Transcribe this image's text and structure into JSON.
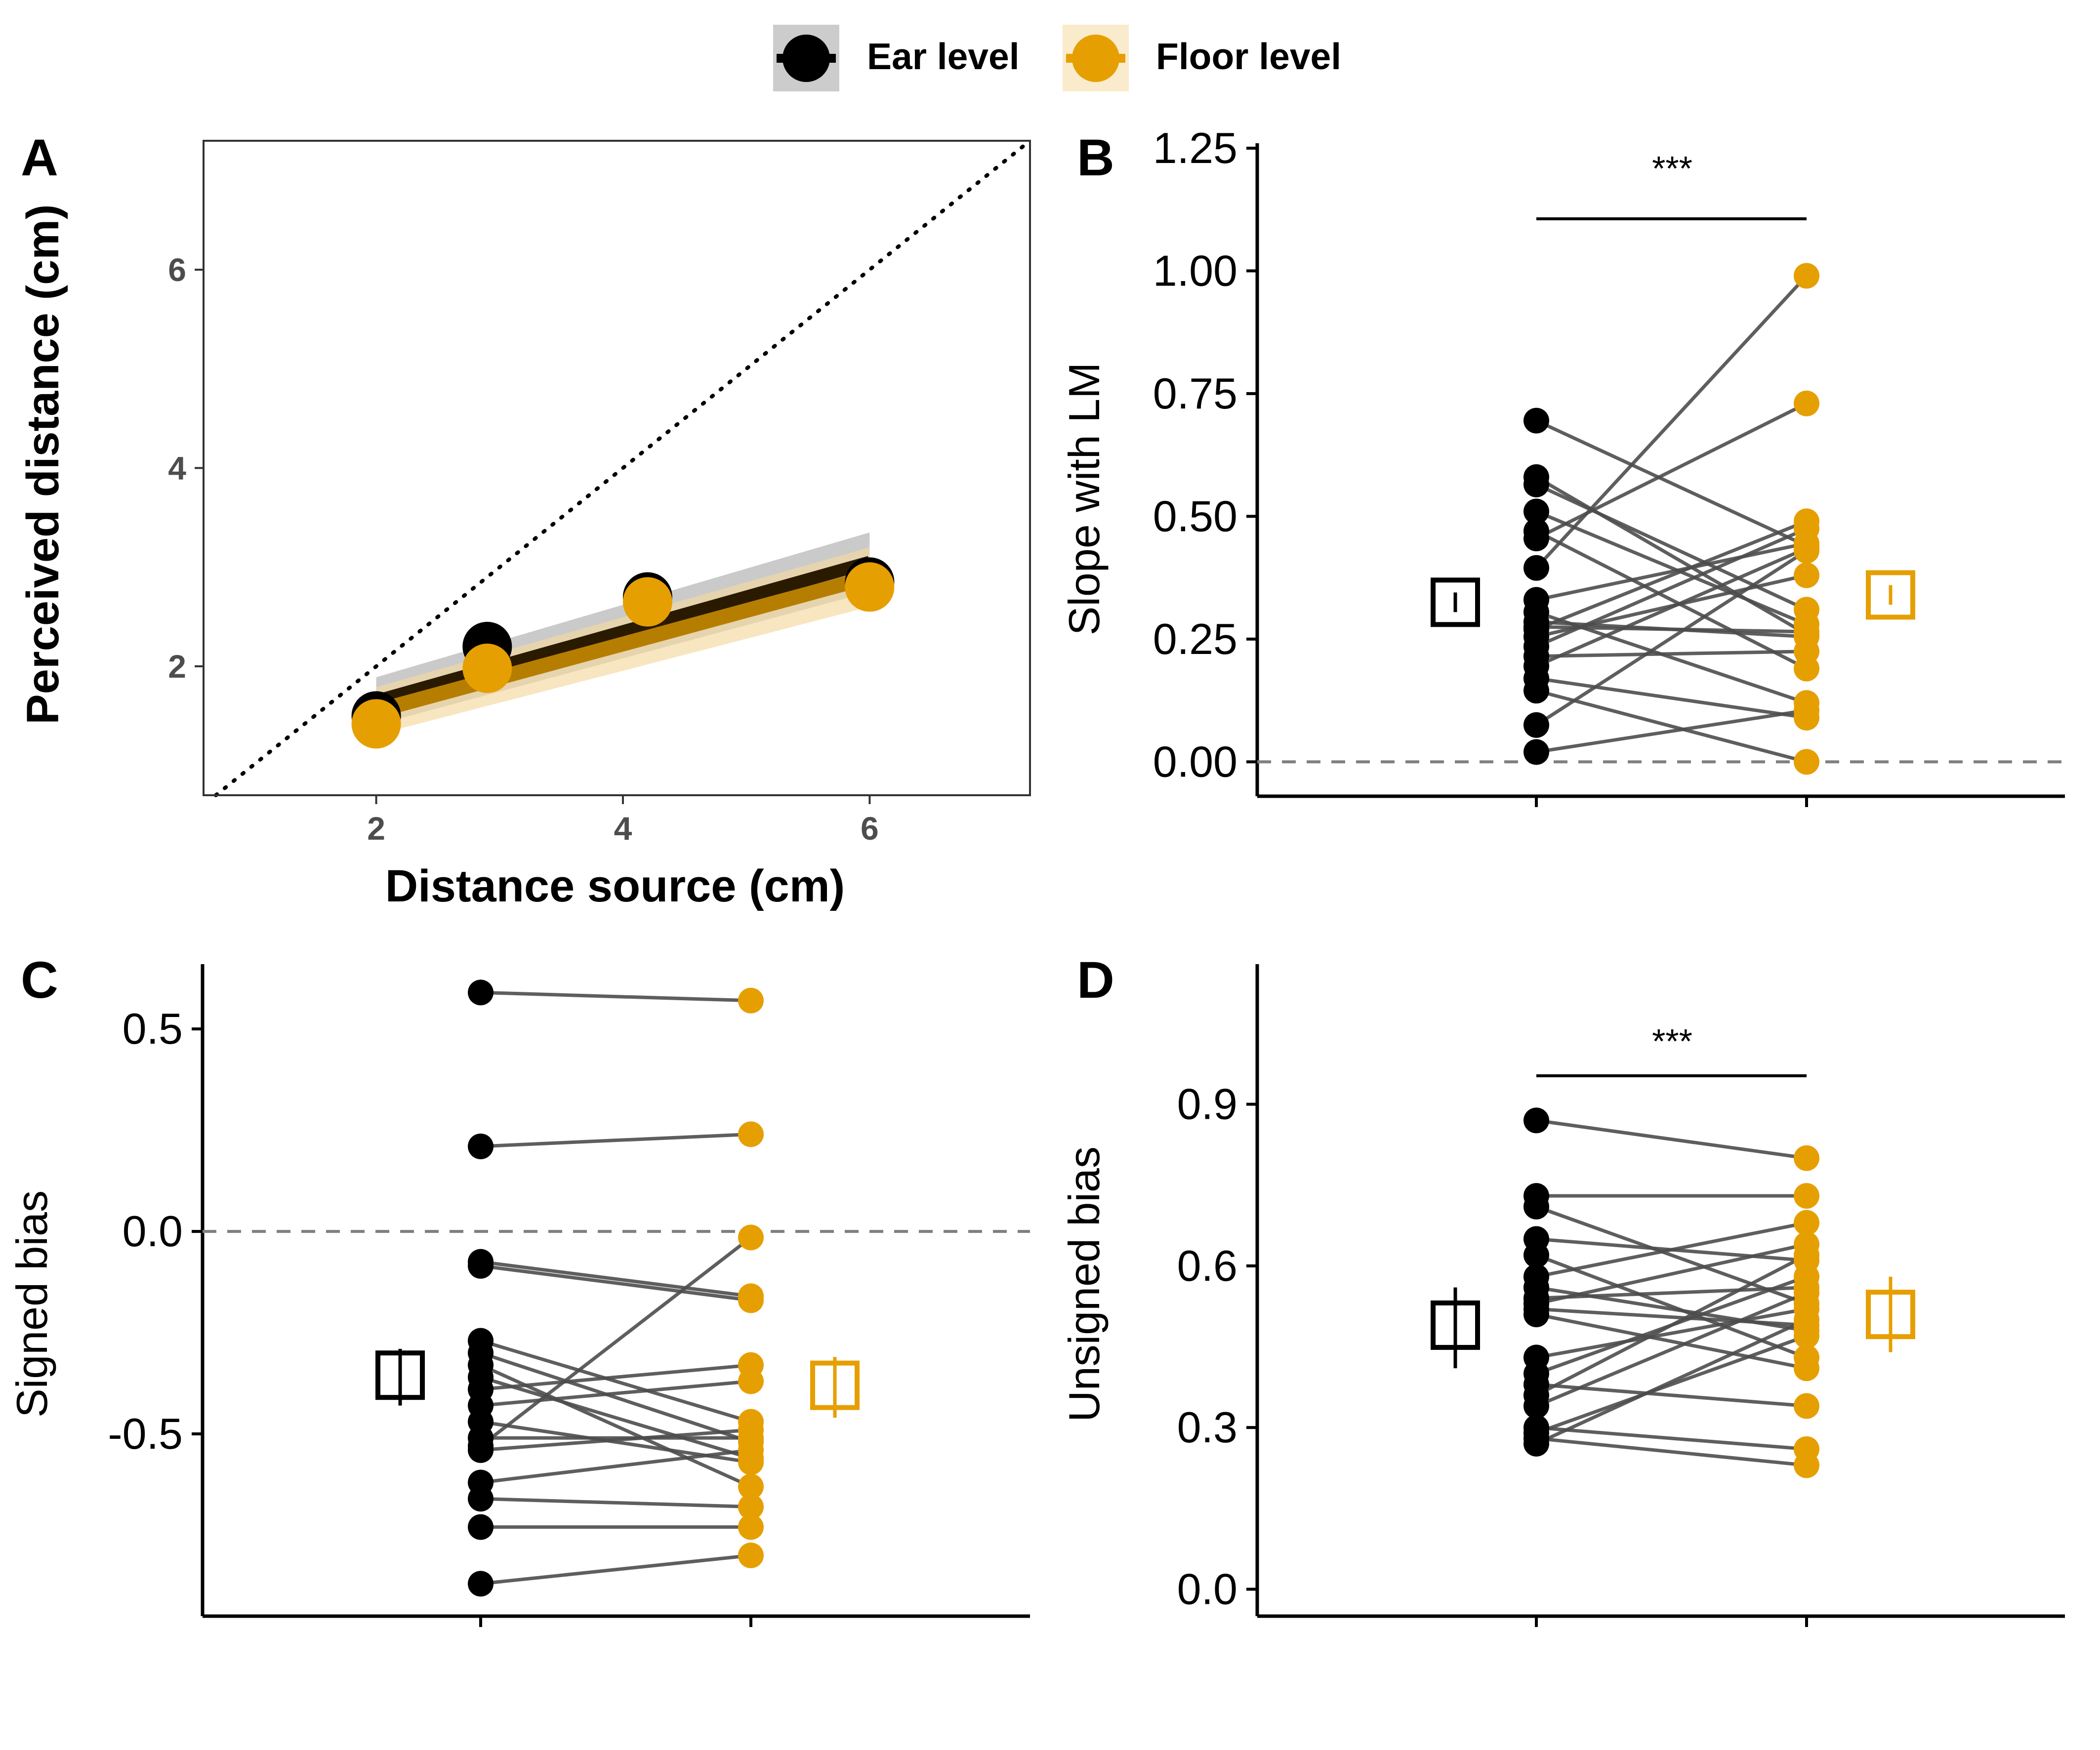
{
  "legend": {
    "items": [
      {
        "label": "Ear level",
        "color": "#000000",
        "bg": "#cccccc"
      },
      {
        "label": "Floor level",
        "color": "#E69F00",
        "bg": "#faebcc"
      }
    ]
  },
  "chart_data": [
    {
      "panel": "A",
      "type": "scatter",
      "xlabel": "Distance source (cm)",
      "ylabel": "Perceived distance (cm)",
      "xlim": [
        0.6,
        7.3
      ],
      "ylim": [
        0.7,
        7.3
      ],
      "xticks": [
        2,
        4,
        6
      ],
      "yticks": [
        2,
        4,
        6
      ],
      "identity_line": true,
      "series": [
        {
          "name": "Ear level",
          "color": "#000000",
          "x": [
            2.0,
            2.9,
            4.2,
            6.0
          ],
          "y": [
            1.5,
            2.2,
            2.7,
            2.85
          ],
          "fit": {
            "x0": 2.0,
            "y0": 1.65,
            "x1": 6.0,
            "y1": 3.05,
            "band": 0.3
          }
        },
        {
          "name": "Floor level",
          "color": "#E69F00",
          "x": [
            2.0,
            2.9,
            4.2,
            6.0
          ],
          "y": [
            1.42,
            1.98,
            2.65,
            2.8
          ],
          "fit": {
            "x0": 2.0,
            "y0": 1.55,
            "x1": 6.0,
            "y1": 2.9,
            "band": 0.3
          }
        }
      ]
    },
    {
      "panel": "B",
      "type": "scatter",
      "ylabel": "Slope with LM",
      "ylim": [
        -0.07,
        1.26
      ],
      "yticks": [
        0.0,
        0.25,
        0.5,
        0.75,
        1.0,
        1.25
      ],
      "ytick_labels": [
        "0.00",
        "0.25",
        "0.50",
        "0.75",
        "1.00",
        "1.25"
      ],
      "reference_line": 0,
      "significance": "***",
      "pairs": [
        [
          0.695,
          0.44
        ],
        [
          0.58,
          0.26
        ],
        [
          0.565,
          0.31
        ],
        [
          0.51,
          0.28
        ],
        [
          0.47,
          0.19
        ],
        [
          0.455,
          0.73
        ],
        [
          0.395,
          0.99
        ],
        [
          0.33,
          0.445
        ],
        [
          0.305,
          0.12
        ],
        [
          0.285,
          0.255
        ],
        [
          0.275,
          0.265
        ],
        [
          0.27,
          0.49
        ],
        [
          0.255,
          0.38
        ],
        [
          0.235,
          0.475
        ],
        [
          0.215,
          0.225
        ],
        [
          0.195,
          0.435
        ],
        [
          0.17,
          0.09
        ],
        [
          0.145,
          0.0
        ],
        [
          0.075,
          0.43
        ],
        [
          0.02,
          0.105
        ]
      ],
      "summary": [
        {
          "group": "Ear level",
          "mean": 0.325,
          "lo": 0.305,
          "hi": 0.345
        },
        {
          "group": "Floor level",
          "mean": 0.34,
          "lo": 0.32,
          "hi": 0.36
        }
      ]
    },
    {
      "panel": "C",
      "type": "scatter",
      "ylabel": "Signed bias",
      "ylim": [
        -0.95,
        0.66
      ],
      "yticks": [
        -0.5,
        0.0,
        0.5
      ],
      "ytick_labels": [
        "-0.5",
        "0.0",
        "0.5"
      ],
      "reference_line": 0,
      "pairs": [
        [
          0.59,
          0.57
        ],
        [
          0.21,
          0.24
        ],
        [
          -0.075,
          -0.16
        ],
        [
          -0.085,
          -0.17
        ],
        [
          -0.27,
          -0.47
        ],
        [
          -0.3,
          -0.52
        ],
        [
          -0.33,
          -0.63
        ],
        [
          -0.36,
          -0.56
        ],
        [
          -0.39,
          -0.33
        ],
        [
          -0.43,
          -0.37
        ],
        [
          -0.47,
          -0.57
        ],
        [
          -0.51,
          -0.51
        ],
        [
          -0.53,
          -0.015
        ],
        [
          -0.54,
          -0.49
        ],
        [
          -0.62,
          -0.54
        ],
        [
          -0.66,
          -0.68
        ],
        [
          -0.73,
          -0.73
        ],
        [
          -0.87,
          -0.8
        ]
      ],
      "summary": [
        {
          "group": "Ear level",
          "mean": -0.355,
          "lo": -0.43,
          "hi": -0.29
        },
        {
          "group": "Floor level",
          "mean": -0.38,
          "lo": -0.46,
          "hi": -0.31
        }
      ]
    },
    {
      "panel": "D",
      "type": "scatter",
      "ylabel": "Unsigned bias",
      "ylim": [
        -0.05,
        1.16
      ],
      "yticks": [
        0.0,
        0.3,
        0.6,
        0.9
      ],
      "ytick_labels": [
        "0.0",
        "0.3",
        "0.6",
        "0.9"
      ],
      "significance": "***",
      "pairs": [
        [
          0.87,
          0.8
        ],
        [
          0.73,
          0.73
        ],
        [
          0.71,
          0.53
        ],
        [
          0.65,
          0.61
        ],
        [
          0.62,
          0.43
        ],
        [
          0.58,
          0.68
        ],
        [
          0.56,
          0.48
        ],
        [
          0.54,
          0.56
        ],
        [
          0.53,
          0.64
        ],
        [
          0.52,
          0.49
        ],
        [
          0.51,
          0.41
        ],
        [
          0.43,
          0.52
        ],
        [
          0.4,
          0.58
        ],
        [
          0.38,
          0.34
        ],
        [
          0.36,
          0.62
        ],
        [
          0.34,
          0.55
        ],
        [
          0.3,
          0.26
        ],
        [
          0.29,
          0.47
        ],
        [
          0.28,
          0.23
        ],
        [
          0.27,
          0.5
        ]
      ],
      "summary": [
        {
          "group": "Ear level",
          "mean": 0.49,
          "lo": 0.41,
          "hi": 0.56
        },
        {
          "group": "Floor level",
          "mean": 0.51,
          "lo": 0.44,
          "hi": 0.58
        }
      ]
    }
  ]
}
